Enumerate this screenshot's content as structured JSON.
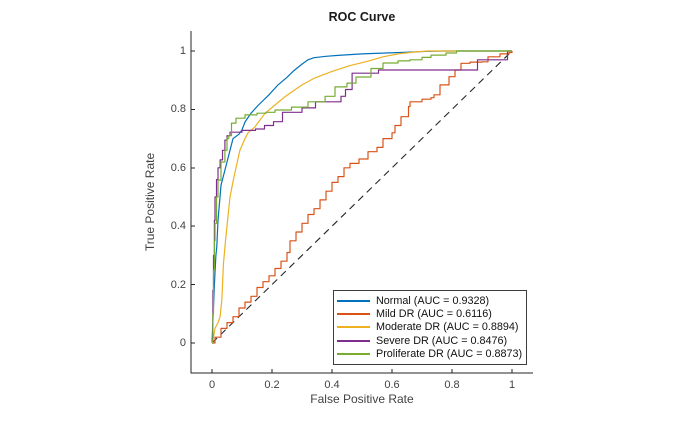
{
  "figure": {
    "title": "ROC Curve"
  },
  "chart_data": {
    "type": "line",
    "title": "ROC Curve",
    "xlabel": "False Positive Rate",
    "ylabel": "True Positive Rate",
    "xlim": [
      0,
      1
    ],
    "ylim": [
      0,
      1
    ],
    "grid": false,
    "legend_position": "lower right",
    "axis_color": "#262626",
    "xticks": {
      "values": [
        0,
        0.2,
        0.4,
        0.6,
        0.8,
        1
      ],
      "labels": [
        "0",
        "0.2",
        "0.4",
        "0.6",
        "0.8",
        "1"
      ]
    },
    "yticks": {
      "values": [
        0,
        0.2,
        0.4,
        0.6,
        0.8,
        1
      ],
      "labels": [
        "0",
        "0.2",
        "0.4",
        "0.6",
        "0.8",
        "1"
      ]
    },
    "reference_line": {
      "name": "chance-diagonal",
      "style": "dashed",
      "color": "#262626",
      "points": [
        [
          0,
          0
        ],
        [
          1,
          1
        ]
      ]
    },
    "series": [
      {
        "name": "Normal",
        "auc": 0.9328,
        "label": "Normal (AUC = 0.9328)",
        "color": "#0072BD",
        "step": false,
        "points": [
          [
            0,
            0
          ],
          [
            0.004,
            0.1
          ],
          [
            0.008,
            0.2
          ],
          [
            0.013,
            0.3
          ],
          [
            0.016,
            0.33
          ],
          [
            0.02,
            0.42
          ],
          [
            0.025,
            0.48
          ],
          [
            0.03,
            0.54
          ],
          [
            0.04,
            0.58
          ],
          [
            0.05,
            0.62
          ],
          [
            0.06,
            0.66
          ],
          [
            0.07,
            0.7
          ],
          [
            0.09,
            0.715
          ],
          [
            0.1,
            0.73
          ],
          [
            0.11,
            0.757
          ],
          [
            0.13,
            0.787
          ],
          [
            0.155,
            0.815
          ],
          [
            0.19,
            0.85
          ],
          [
            0.22,
            0.884
          ],
          [
            0.25,
            0.91
          ],
          [
            0.27,
            0.93
          ],
          [
            0.3,
            0.955
          ],
          [
            0.32,
            0.97
          ],
          [
            0.34,
            0.977
          ],
          [
            0.38,
            0.982
          ],
          [
            0.42,
            0.985
          ],
          [
            0.5,
            0.99
          ],
          [
            0.58,
            0.993
          ],
          [
            0.65,
            0.996
          ],
          [
            0.72,
            0.999
          ],
          [
            0.78,
            1.0
          ],
          [
            1,
            1
          ]
        ]
      },
      {
        "name": "Mild DR",
        "auc": 0.6116,
        "label": "Mild DR (AUC = 0.6116)",
        "color": "#D95319",
        "step": true,
        "points": [
          [
            0,
            0
          ],
          [
            0.01,
            0.02
          ],
          [
            0.03,
            0.05
          ],
          [
            0.05,
            0.07
          ],
          [
            0.07,
            0.09
          ],
          [
            0.09,
            0.12
          ],
          [
            0.11,
            0.14
          ],
          [
            0.13,
            0.16
          ],
          [
            0.15,
            0.19
          ],
          [
            0.17,
            0.21
          ],
          [
            0.19,
            0.23
          ],
          [
            0.21,
            0.255
          ],
          [
            0.23,
            0.28
          ],
          [
            0.25,
            0.31
          ],
          [
            0.26,
            0.35
          ],
          [
            0.28,
            0.38
          ],
          [
            0.3,
            0.41
          ],
          [
            0.32,
            0.44
          ],
          [
            0.34,
            0.46
          ],
          [
            0.36,
            0.49
          ],
          [
            0.38,
            0.52
          ],
          [
            0.4,
            0.55
          ],
          [
            0.42,
            0.57
          ],
          [
            0.44,
            0.6
          ],
          [
            0.46,
            0.615
          ],
          [
            0.49,
            0.63
          ],
          [
            0.52,
            0.655
          ],
          [
            0.55,
            0.67
          ],
          [
            0.57,
            0.7
          ],
          [
            0.6,
            0.72
          ],
          [
            0.61,
            0.745
          ],
          [
            0.63,
            0.775
          ],
          [
            0.655,
            0.81
          ],
          [
            0.66,
            0.826
          ],
          [
            0.7,
            0.835
          ],
          [
            0.73,
            0.84
          ],
          [
            0.74,
            0.85
          ],
          [
            0.76,
            0.884
          ],
          [
            0.79,
            0.912
          ],
          [
            0.81,
            0.935
          ],
          [
            0.83,
            0.958
          ],
          [
            0.86,
            0.962
          ],
          [
            0.9,
            0.963
          ],
          [
            0.92,
            0.98
          ],
          [
            0.96,
            0.99
          ],
          [
            0.99,
            0.995
          ],
          [
            1,
            1
          ]
        ]
      },
      {
        "name": "Moderate DR",
        "auc": 0.8894,
        "label": "Moderate DR (AUC = 0.8894)",
        "color": "#EDB120",
        "step": false,
        "points": [
          [
            0,
            0
          ],
          [
            0.005,
            0.02
          ],
          [
            0.01,
            0.05
          ],
          [
            0.02,
            0.07
          ],
          [
            0.027,
            0.09
          ],
          [
            0.033,
            0.15
          ],
          [
            0.038,
            0.27
          ],
          [
            0.045,
            0.35
          ],
          [
            0.054,
            0.44
          ],
          [
            0.06,
            0.5
          ],
          [
            0.071,
            0.558
          ],
          [
            0.08,
            0.6
          ],
          [
            0.093,
            0.66
          ],
          [
            0.11,
            0.7
          ],
          [
            0.12,
            0.72
          ],
          [
            0.143,
            0.74
          ],
          [
            0.177,
            0.787
          ],
          [
            0.21,
            0.815
          ],
          [
            0.243,
            0.843
          ],
          [
            0.3,
            0.884
          ],
          [
            0.343,
            0.908
          ],
          [
            0.4,
            0.93
          ],
          [
            0.46,
            0.95
          ],
          [
            0.52,
            0.965
          ],
          [
            0.57,
            0.98
          ],
          [
            0.62,
            0.99
          ],
          [
            0.68,
            0.997
          ],
          [
            0.72,
            1.0
          ],
          [
            1,
            1
          ]
        ]
      },
      {
        "name": "Severe DR",
        "auc": 0.8476,
        "label": "Severe DR (AUC = 0.8476)",
        "color": "#7E2F8E",
        "step": true,
        "points": [
          [
            0,
            0
          ],
          [
            0.003,
            0.18
          ],
          [
            0.005,
            0.3
          ],
          [
            0.008,
            0.42
          ],
          [
            0.01,
            0.5
          ],
          [
            0.015,
            0.56
          ],
          [
            0.02,
            0.6
          ],
          [
            0.027,
            0.627
          ],
          [
            0.035,
            0.66
          ],
          [
            0.043,
            0.695
          ],
          [
            0.05,
            0.71
          ],
          [
            0.06,
            0.722
          ],
          [
            0.1,
            0.728
          ],
          [
            0.145,
            0.733
          ],
          [
            0.175,
            0.745
          ],
          [
            0.205,
            0.758
          ],
          [
            0.235,
            0.79
          ],
          [
            0.3,
            0.805
          ],
          [
            0.345,
            0.826
          ],
          [
            0.43,
            0.845
          ],
          [
            0.445,
            0.868
          ],
          [
            0.467,
            0.924
          ],
          [
            0.555,
            0.935
          ],
          [
            0.885,
            0.97
          ],
          [
            0.985,
            1.0
          ],
          [
            1,
            1
          ]
        ]
      },
      {
        "name": "Proliferate DR",
        "auc": 0.8873,
        "label": "Proliferate DR (AUC = 0.8873)",
        "color": "#77AC30",
        "step": true,
        "points": [
          [
            0,
            0
          ],
          [
            0.003,
            0.1
          ],
          [
            0.005,
            0.25
          ],
          [
            0.008,
            0.35
          ],
          [
            0.01,
            0.41
          ],
          [
            0.015,
            0.5
          ],
          [
            0.02,
            0.558
          ],
          [
            0.03,
            0.62
          ],
          [
            0.043,
            0.66
          ],
          [
            0.05,
            0.7
          ],
          [
            0.056,
            0.71
          ],
          [
            0.065,
            0.753
          ],
          [
            0.08,
            0.77
          ],
          [
            0.11,
            0.781
          ],
          [
            0.15,
            0.787
          ],
          [
            0.18,
            0.79
          ],
          [
            0.21,
            0.798
          ],
          [
            0.265,
            0.808
          ],
          [
            0.32,
            0.826
          ],
          [
            0.377,
            0.845
          ],
          [
            0.41,
            0.877
          ],
          [
            0.45,
            0.89
          ],
          [
            0.48,
            0.911
          ],
          [
            0.53,
            0.94
          ],
          [
            0.57,
            0.959
          ],
          [
            0.62,
            0.966
          ],
          [
            0.66,
            0.97
          ],
          [
            0.7,
            0.978
          ],
          [
            0.73,
            0.986
          ],
          [
            0.78,
            0.993
          ],
          [
            0.815,
            1.0
          ],
          [
            1,
            1
          ]
        ]
      }
    ]
  }
}
